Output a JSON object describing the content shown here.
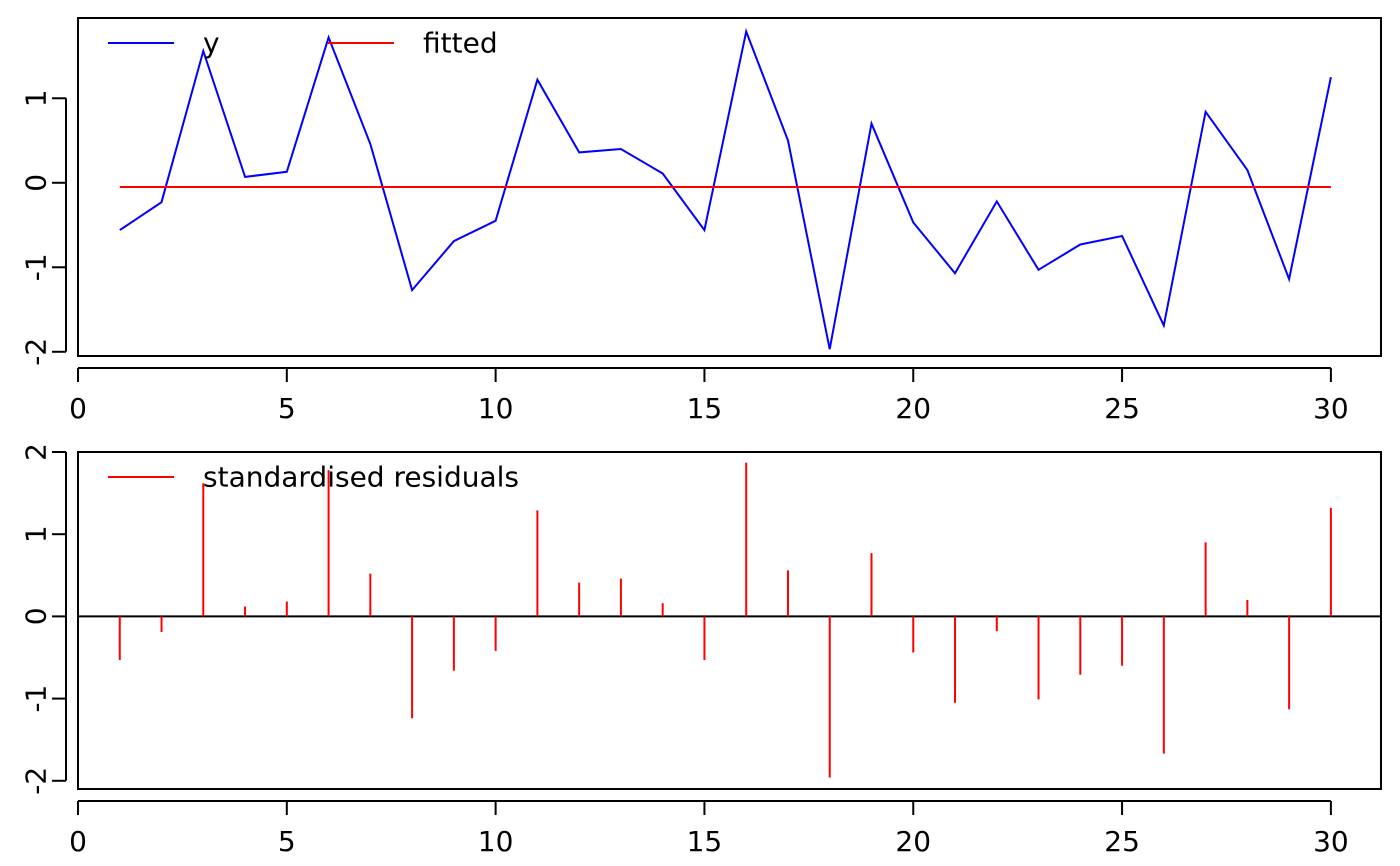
{
  "chart_data": [
    {
      "type": "line",
      "x": [
        1,
        2,
        3,
        4,
        5,
        6,
        7,
        8,
        9,
        10,
        11,
        12,
        13,
        14,
        15,
        16,
        17,
        18,
        19,
        20,
        21,
        22,
        23,
        24,
        25,
        26,
        27,
        28,
        29,
        30
      ],
      "series": [
        {
          "name": "y",
          "color": "#0000ff",
          "values": [
            -0.56,
            -0.23,
            1.56,
            0.07,
            0.13,
            1.72,
            0.46,
            -1.27,
            -0.69,
            -0.45,
            1.22,
            0.36,
            0.4,
            0.11,
            -0.56,
            1.79,
            0.5,
            -1.97,
            0.7,
            -0.47,
            -1.07,
            -0.22,
            -1.03,
            -0.73,
            -0.63,
            -1.69,
            0.84,
            0.15,
            -1.14,
            1.25
          ]
        },
        {
          "name": "fitted",
          "color": "#ff0000",
          "values": [
            -0.05,
            -0.05,
            -0.05,
            -0.05,
            -0.05,
            -0.05,
            -0.05,
            -0.05,
            -0.05,
            -0.05,
            -0.05,
            -0.05,
            -0.05,
            -0.05,
            -0.05,
            -0.05,
            -0.05,
            -0.05,
            -0.05,
            -0.05,
            -0.05,
            -0.05,
            -0.05,
            -0.05,
            -0.05,
            -0.05,
            -0.05,
            -0.05,
            -0.05,
            -0.05
          ]
        }
      ],
      "xlim": [
        0,
        31.2
      ],
      "ylim": [
        -2.05,
        1.95
      ],
      "xticks": [
        "0",
        "5",
        "10",
        "15",
        "20",
        "25",
        "30"
      ],
      "yticks": [
        "-2",
        "-1",
        "0",
        "1"
      ],
      "legend": "top-left",
      "grid": false
    },
    {
      "type": "bar",
      "x": [
        1,
        2,
        3,
        4,
        5,
        6,
        7,
        8,
        9,
        10,
        11,
        12,
        13,
        14,
        15,
        16,
        17,
        18,
        19,
        20,
        21,
        22,
        23,
        24,
        25,
        26,
        27,
        28,
        29,
        30
      ],
      "series": [
        {
          "name": "standardised residuals",
          "color": "#ff0000",
          "values": [
            -0.53,
            -0.19,
            1.62,
            0.12,
            0.18,
            1.78,
            0.52,
            -1.24,
            -0.66,
            -0.42,
            1.29,
            0.41,
            0.46,
            0.16,
            -0.53,
            1.87,
            0.56,
            -1.96,
            0.77,
            -0.44,
            -1.05,
            -0.18,
            -1.01,
            -0.71,
            -0.6,
            -1.67,
            0.9,
            0.2,
            -1.13,
            1.32
          ]
        }
      ],
      "baseline": 0,
      "xlim": [
        0,
        31.2
      ],
      "ylim": [
        -2.1,
        2.0
      ],
      "xticks": [
        "0",
        "5",
        "10",
        "15",
        "20",
        "25",
        "30"
      ],
      "yticks": [
        "-2",
        "-1",
        "0",
        "1",
        "2"
      ],
      "legend": "top-left",
      "grid": false
    }
  ]
}
